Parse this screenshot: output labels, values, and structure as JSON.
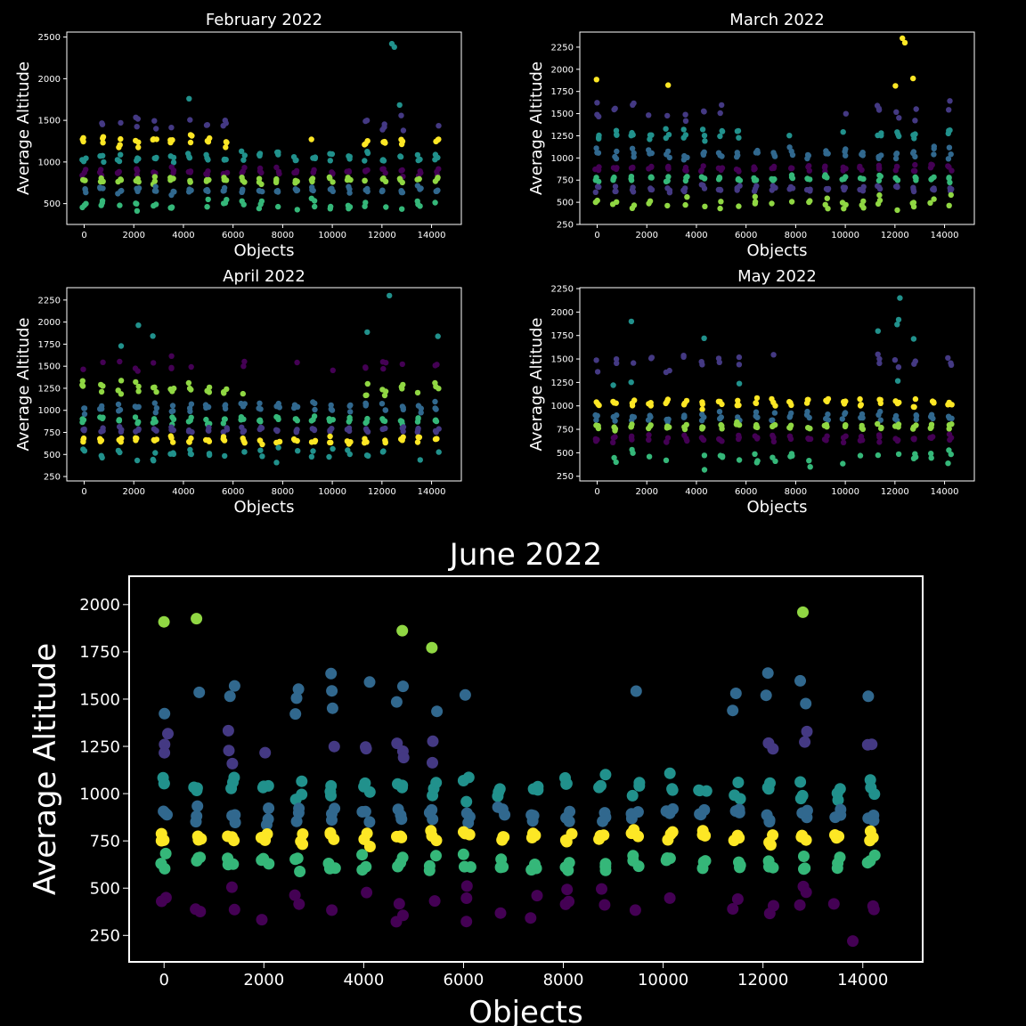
{
  "colors": {
    "background": "#000000",
    "axis": "#ffffff",
    "viridis": [
      "#440154",
      "#443983",
      "#31688e",
      "#21918c",
      "#35b779",
      "#90d743",
      "#fde725"
    ]
  },
  "chart_data": [
    {
      "type": "scatter",
      "title": "February 2022",
      "xlabel": "Objects",
      "ylabel": "Average Altitude",
      "xlim": [
        -700,
        15200
      ],
      "ylim": [
        250,
        2560
      ],
      "xticks": [
        0,
        2000,
        4000,
        6000,
        8000,
        10000,
        12000,
        14000
      ],
      "yticks": [
        500,
        1000,
        1500,
        2000,
        2500
      ],
      "grid": false,
      "bands": [
        {
          "center": 1750,
          "halfwidth": 200,
          "color": "#21918c",
          "density": "sparse"
        },
        {
          "center": 1450,
          "halfwidth": 150,
          "color": "#443983",
          "density": "medium"
        },
        {
          "center": 1250,
          "halfwidth": 100,
          "color": "#fde725",
          "density": "dense"
        },
        {
          "center": 1050,
          "halfwidth": 90,
          "color": "#21918c",
          "density": "dense"
        },
        {
          "center": 880,
          "halfwidth": 70,
          "color": "#440154",
          "density": "dense"
        },
        {
          "center": 780,
          "halfwidth": 50,
          "color": "#90d743",
          "density": "dense"
        },
        {
          "center": 660,
          "halfwidth": 60,
          "color": "#31688e",
          "density": "dense"
        },
        {
          "center": 480,
          "halfwidth": 100,
          "color": "#35b779",
          "density": "medium"
        }
      ],
      "outliers": [
        {
          "x": 12400,
          "y": 2420,
          "color": "#21918c"
        },
        {
          "x": 12500,
          "y": 2380,
          "color": "#21918c"
        }
      ]
    },
    {
      "type": "scatter",
      "title": "March 2022",
      "xlabel": "Objects",
      "ylabel": "Average Altitude",
      "xlim": [
        -700,
        15200
      ],
      "ylim": [
        250,
        2420
      ],
      "xticks": [
        0,
        2000,
        4000,
        6000,
        8000,
        10000,
        12000,
        14000
      ],
      "yticks": [
        250,
        500,
        750,
        1000,
        1250,
        1500,
        1750,
        2000,
        2250
      ],
      "grid": false,
      "bands": [
        {
          "center": 1850,
          "halfwidth": 170,
          "color": "#fde725",
          "density": "sparse"
        },
        {
          "center": 1520,
          "halfwidth": 130,
          "color": "#443983",
          "density": "medium"
        },
        {
          "center": 1260,
          "halfwidth": 110,
          "color": "#21918c",
          "density": "dense"
        },
        {
          "center": 1040,
          "halfwidth": 100,
          "color": "#31688e",
          "density": "dense"
        },
        {
          "center": 880,
          "halfwidth": 60,
          "color": "#440154",
          "density": "dense"
        },
        {
          "center": 770,
          "halfwidth": 50,
          "color": "#35b779",
          "density": "dense"
        },
        {
          "center": 650,
          "halfwidth": 60,
          "color": "#443983",
          "density": "dense"
        },
        {
          "center": 500,
          "halfwidth": 110,
          "color": "#90d743",
          "density": "medium"
        }
      ],
      "outliers": [
        {
          "x": 12300,
          "y": 2350,
          "color": "#fde725"
        },
        {
          "x": 12400,
          "y": 2300,
          "color": "#fde725"
        }
      ]
    },
    {
      "type": "scatter",
      "title": "April 2022",
      "xlabel": "Objects",
      "ylabel": "Average Altitude",
      "xlim": [
        -700,
        15200
      ],
      "ylim": [
        200,
        2390
      ],
      "xticks": [
        0,
        2000,
        4000,
        6000,
        8000,
        10000,
        12000,
        14000
      ],
      "yticks": [
        250,
        500,
        750,
        1000,
        1250,
        1500,
        1750,
        2000,
        2250
      ],
      "grid": false,
      "bands": [
        {
          "center": 1850,
          "halfwidth": 170,
          "color": "#21918c",
          "density": "sparse"
        },
        {
          "center": 1520,
          "halfwidth": 130,
          "color": "#440154",
          "density": "medium"
        },
        {
          "center": 1250,
          "halfwidth": 110,
          "color": "#90d743",
          "density": "dense"
        },
        {
          "center": 1040,
          "halfwidth": 90,
          "color": "#31688e",
          "density": "dense"
        },
        {
          "center": 890,
          "halfwidth": 70,
          "color": "#35b779",
          "density": "dense"
        },
        {
          "center": 780,
          "halfwidth": 50,
          "color": "#443983",
          "density": "dense"
        },
        {
          "center": 660,
          "halfwidth": 60,
          "color": "#fde725",
          "density": "dense"
        },
        {
          "center": 500,
          "halfwidth": 110,
          "color": "#21918c",
          "density": "medium"
        }
      ],
      "outliers": [
        {
          "x": 12300,
          "y": 2300,
          "color": "#21918c"
        }
      ]
    },
    {
      "type": "scatter",
      "title": "May 2022",
      "xlabel": "Objects",
      "ylabel": "Average Altitude",
      "xlim": [
        -700,
        15200
      ],
      "ylim": [
        200,
        2260
      ],
      "xticks": [
        0,
        2000,
        4000,
        6000,
        8000,
        10000,
        12000,
        14000
      ],
      "yticks": [
        250,
        500,
        750,
        1000,
        1250,
        1500,
        1750,
        2000,
        2250
      ],
      "grid": false,
      "bands": [
        {
          "center": 1820,
          "halfwidth": 200,
          "color": "#21918c",
          "density": "sparse"
        },
        {
          "center": 1480,
          "halfwidth": 150,
          "color": "#443983",
          "density": "medium"
        },
        {
          "center": 1250,
          "halfwidth": 90,
          "color": "#21918c",
          "density": "sparse"
        },
        {
          "center": 1030,
          "halfwidth": 80,
          "color": "#fde725",
          "density": "dense"
        },
        {
          "center": 890,
          "halfwidth": 70,
          "color": "#31688e",
          "density": "dense"
        },
        {
          "center": 780,
          "halfwidth": 50,
          "color": "#90d743",
          "density": "dense"
        },
        {
          "center": 650,
          "halfwidth": 70,
          "color": "#440154",
          "density": "dense"
        },
        {
          "center": 440,
          "halfwidth": 120,
          "color": "#35b779",
          "density": "medium"
        }
      ],
      "outliers": [
        {
          "x": 12200,
          "y": 2150,
          "color": "#21918c"
        }
      ]
    },
    {
      "type": "scatter",
      "title": "June 2022",
      "xlabel": "Objects",
      "ylabel": "Average Altitude",
      "xlim": [
        -700,
        15200
      ],
      "ylim": [
        110,
        2150
      ],
      "xticks": [
        0,
        2000,
        4000,
        6000,
        8000,
        10000,
        12000,
        14000
      ],
      "yticks": [
        250,
        500,
        750,
        1000,
        1250,
        1500,
        1750,
        2000
      ],
      "grid": false,
      "bands": [
        {
          "center": 1850,
          "halfwidth": 180,
          "color": "#90d743",
          "density": "sparse"
        },
        {
          "center": 1520,
          "halfwidth": 140,
          "color": "#31688e",
          "density": "medium"
        },
        {
          "center": 1250,
          "halfwidth": 120,
          "color": "#443983",
          "density": "medium"
        },
        {
          "center": 1030,
          "halfwidth": 110,
          "color": "#21918c",
          "density": "dense"
        },
        {
          "center": 890,
          "halfwidth": 60,
          "color": "#31688e",
          "density": "dense"
        },
        {
          "center": 770,
          "halfwidth": 60,
          "color": "#fde725",
          "density": "dense"
        },
        {
          "center": 630,
          "halfwidth": 70,
          "color": "#35b779",
          "density": "dense"
        },
        {
          "center": 420,
          "halfwidth": 130,
          "color": "#440154",
          "density": "medium"
        }
      ],
      "outliers": [
        {
          "x": 13800,
          "y": 220,
          "color": "#440154"
        }
      ]
    }
  ]
}
